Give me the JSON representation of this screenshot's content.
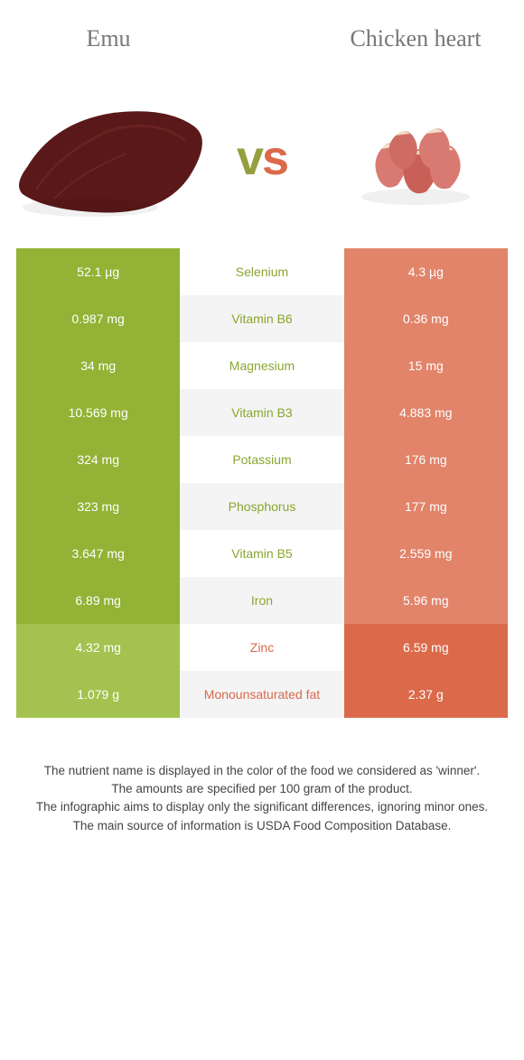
{
  "header": {
    "left": "Emu",
    "right": "Chicken heart",
    "vs_left": "v",
    "vs_right": "s"
  },
  "colors": {
    "left_win": "#92b335",
    "left_lose": "#a4c24f",
    "right_win": "#da6a4a",
    "right_lose": "#e1846a",
    "label_left": "#8aa52f",
    "label_right": "#da6a4a",
    "row_alt": "#f4f4f4"
  },
  "rows": [
    {
      "name": "Selenium",
      "left": "52.1 µg",
      "right": "4.3 µg",
      "winner": "left"
    },
    {
      "name": "Vitamin B6",
      "left": "0.987 mg",
      "right": "0.36 mg",
      "winner": "left"
    },
    {
      "name": "Magnesium",
      "left": "34 mg",
      "right": "15 mg",
      "winner": "left"
    },
    {
      "name": "Vitamin B3",
      "left": "10.569 mg",
      "right": "4.883 mg",
      "winner": "left"
    },
    {
      "name": "Potassium",
      "left": "324 mg",
      "right": "176 mg",
      "winner": "left"
    },
    {
      "name": "Phosphorus",
      "left": "323 mg",
      "right": "177 mg",
      "winner": "left"
    },
    {
      "name": "Vitamin B5",
      "left": "3.647 mg",
      "right": "2.559 mg",
      "winner": "left"
    },
    {
      "name": "Iron",
      "left": "6.89 mg",
      "right": "5.96 mg",
      "winner": "left"
    },
    {
      "name": "Zinc",
      "left": "4.32 mg",
      "right": "6.59 mg",
      "winner": "right"
    },
    {
      "name": "Monounsaturated fat",
      "left": "1.079 g",
      "right": "2.37 g",
      "winner": "right"
    }
  ],
  "notes": [
    "The nutrient name is displayed in the color of the food we considered as 'winner'.",
    "The amounts are specified per 100 gram of the product.",
    "The infographic aims to display only the significant differences, ignoring minor ones.",
    "The main source of information is USDA Food Composition Database."
  ]
}
